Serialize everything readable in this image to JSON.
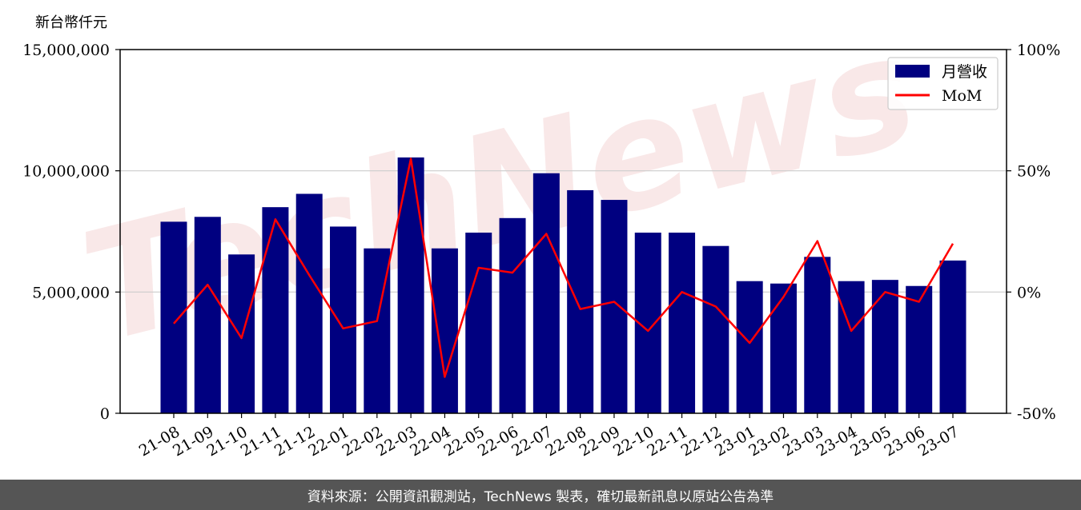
{
  "unit_label": "新台幣仟元",
  "footer_text": "資料來源：公開資訊觀測站，TechNews 製表，確切最新訊息以原站公告為準",
  "watermark_text": "TechNews",
  "colors": {
    "bar": "#000080",
    "line": "#ff0000",
    "grid": "#cccccc",
    "footer_bg": "#555555",
    "watermark": "#f2cccc"
  },
  "chart_data": {
    "type": "bar",
    "categories": [
      "21-08",
      "21-09",
      "21-10",
      "21-11",
      "21-12",
      "22-01",
      "22-02",
      "22-03",
      "22-04",
      "22-05",
      "22-06",
      "22-07",
      "22-08",
      "22-09",
      "22-10",
      "22-11",
      "22-12",
      "23-01",
      "23-02",
      "23-03",
      "23-04",
      "23-05",
      "23-06",
      "23-07"
    ],
    "series": [
      {
        "name": "月營收",
        "type": "bar",
        "axis": "left",
        "values": [
          7900000,
          8100000,
          6550000,
          8500000,
          9050000,
          7700000,
          6800000,
          10550000,
          6800000,
          7450000,
          8050000,
          9900000,
          9200000,
          8800000,
          7450000,
          7450000,
          6900000,
          5450000,
          5350000,
          6450000,
          5450000,
          5500000,
          5250000,
          6300000
        ]
      },
      {
        "name": "MoM",
        "type": "line",
        "axis": "right",
        "values": [
          -13,
          3,
          -19,
          30,
          7,
          -15,
          -12,
          55,
          -35,
          10,
          8,
          24,
          -7,
          -4,
          -16,
          0,
          -6,
          -21,
          -2,
          21,
          -16,
          0,
          -4,
          20
        ]
      }
    ],
    "ylim_left": [
      0,
      15000000
    ],
    "yticks_left": [
      "0",
      "5,000,000",
      "10,000,000",
      "15,000,000"
    ],
    "ylim_right": [
      -50,
      100
    ],
    "yticks_right": [
      "-50%",
      "0%",
      "50%",
      "100%"
    ],
    "grid": true,
    "legend_position": "top-right",
    "title": "",
    "xlabel": ""
  }
}
